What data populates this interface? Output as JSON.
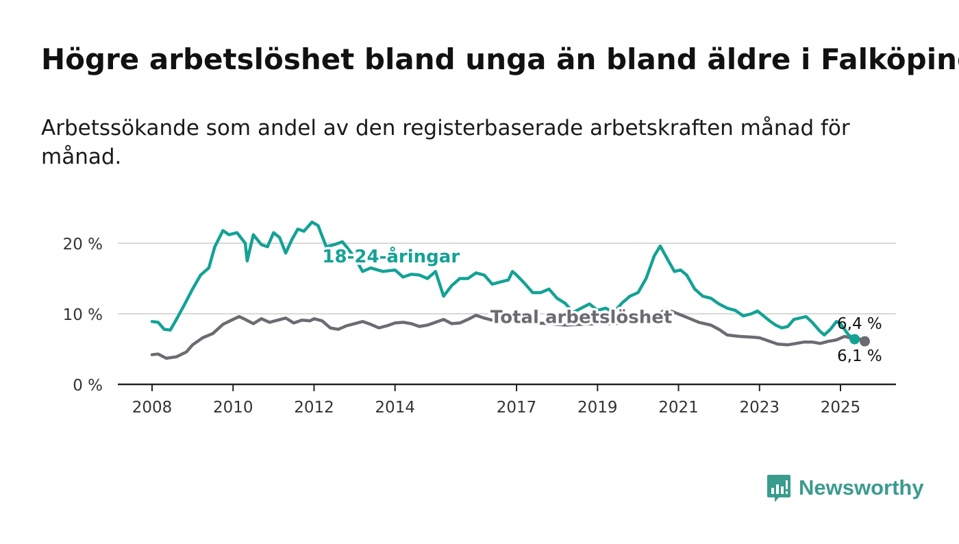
{
  "title": "Högre arbetslöshet bland unga än bland äldre i Falköping",
  "subtitle": "Arbetssökande som andel av den registerbaserade arbetskraften månad för månad.",
  "brand": "Newsworthy",
  "colors": {
    "youth": "#14a295",
    "total": "#6d6b72",
    "grid": "#d9d9d9",
    "axis": "#222222",
    "brand": "#3a9b8f"
  },
  "chart_data": {
    "type": "line",
    "ylim": [
      0,
      25
    ],
    "xlim": [
      2008,
      2026.8
    ],
    "yticks": [
      {
        "value": 0,
        "label": "0 %"
      },
      {
        "value": 10,
        "label": "10 %"
      },
      {
        "value": 20,
        "label": "20 %"
      }
    ],
    "xticks": [
      {
        "value": 2008,
        "label": "2008"
      },
      {
        "value": 2010,
        "label": "2010"
      },
      {
        "value": 2012,
        "label": "2012"
      },
      {
        "value": 2014,
        "label": "2014"
      },
      {
        "value": 2017,
        "label": "2017"
      },
      {
        "value": 2019,
        "label": "2019"
      },
      {
        "value": 2021,
        "label": "2021"
      },
      {
        "value": 2023,
        "label": "2023"
      },
      {
        "value": 2025,
        "label": "2025"
      }
    ],
    "grid": true,
    "series": [
      {
        "name": "18-24-åringar",
        "color": "#14a295",
        "end_label": "6,4 %",
        "points": [
          [
            2008.0,
            8.9
          ],
          [
            2008.15,
            8.8
          ],
          [
            2008.3,
            7.8
          ],
          [
            2008.45,
            7.7
          ],
          [
            2008.6,
            9.2
          ],
          [
            2008.8,
            11.3
          ],
          [
            2009.0,
            13.5
          ],
          [
            2009.2,
            15.5
          ],
          [
            2009.4,
            16.5
          ],
          [
            2009.55,
            19.5
          ],
          [
            2009.75,
            21.8
          ],
          [
            2009.9,
            21.2
          ],
          [
            2010.1,
            21.5
          ],
          [
            2010.3,
            20.0
          ],
          [
            2010.35,
            17.5
          ],
          [
            2010.5,
            21.2
          ],
          [
            2010.7,
            19.8
          ],
          [
            2010.85,
            19.5
          ],
          [
            2011.0,
            21.5
          ],
          [
            2011.15,
            20.8
          ],
          [
            2011.3,
            18.6
          ],
          [
            2011.45,
            20.5
          ],
          [
            2011.6,
            22.0
          ],
          [
            2011.75,
            21.7
          ],
          [
            2011.95,
            23.0
          ],
          [
            2012.1,
            22.5
          ],
          [
            2012.3,
            19.5
          ],
          [
            2012.5,
            19.8
          ],
          [
            2012.7,
            20.2
          ],
          [
            2012.8,
            19.5
          ],
          [
            2013.0,
            18.0
          ],
          [
            2013.2,
            16.0
          ],
          [
            2013.4,
            16.5
          ],
          [
            2013.7,
            16.0
          ],
          [
            2014.0,
            16.2
          ],
          [
            2014.2,
            15.2
          ],
          [
            2014.4,
            15.6
          ],
          [
            2014.6,
            15.5
          ],
          [
            2014.8,
            15.0
          ],
          [
            2015.0,
            16.0
          ],
          [
            2015.2,
            12.5
          ],
          [
            2015.4,
            14.0
          ],
          [
            2015.6,
            15.0
          ],
          [
            2015.8,
            15.0
          ],
          [
            2016.0,
            15.8
          ],
          [
            2016.2,
            15.5
          ],
          [
            2016.4,
            14.2
          ],
          [
            2016.6,
            14.5
          ],
          [
            2016.8,
            14.8
          ],
          [
            2016.9,
            16.0
          ],
          [
            2017.0,
            15.5
          ],
          [
            2017.2,
            14.3
          ],
          [
            2017.4,
            13.0
          ],
          [
            2017.6,
            13.0
          ],
          [
            2017.8,
            13.5
          ],
          [
            2018.0,
            12.2
          ],
          [
            2018.2,
            11.5
          ],
          [
            2018.4,
            10.2
          ],
          [
            2018.6,
            10.8
          ],
          [
            2018.8,
            11.4
          ],
          [
            2019.0,
            10.5
          ],
          [
            2019.2,
            10.8
          ],
          [
            2019.4,
            10.2
          ],
          [
            2019.6,
            11.5
          ],
          [
            2019.8,
            12.5
          ],
          [
            2020.0,
            13.0
          ],
          [
            2020.2,
            15.0
          ],
          [
            2020.4,
            18.2
          ],
          [
            2020.55,
            19.6
          ],
          [
            2020.75,
            17.5
          ],
          [
            2020.9,
            16.0
          ],
          [
            2021.05,
            16.2
          ],
          [
            2021.2,
            15.5
          ],
          [
            2021.4,
            13.5
          ],
          [
            2021.6,
            12.5
          ],
          [
            2021.8,
            12.2
          ],
          [
            2022.0,
            11.4
          ],
          [
            2022.2,
            10.8
          ],
          [
            2022.4,
            10.5
          ],
          [
            2022.6,
            9.7
          ],
          [
            2022.8,
            10.0
          ],
          [
            2022.95,
            10.4
          ],
          [
            2023.1,
            9.7
          ],
          [
            2023.25,
            9.0
          ],
          [
            2023.4,
            8.4
          ],
          [
            2023.55,
            8.0
          ],
          [
            2023.7,
            8.2
          ],
          [
            2023.85,
            9.2
          ],
          [
            2024.0,
            9.4
          ],
          [
            2024.15,
            9.6
          ],
          [
            2024.3,
            8.8
          ],
          [
            2024.5,
            7.5
          ],
          [
            2024.6,
            7.0
          ],
          [
            2024.75,
            7.8
          ],
          [
            2024.9,
            8.9
          ],
          [
            2025.0,
            8.6
          ],
          [
            2025.2,
            7.0
          ],
          [
            2025.35,
            6.4
          ]
        ]
      },
      {
        "name": "Total arbetslöshet",
        "color": "#6d6b72",
        "end_label": "6,1 %",
        "points": [
          [
            2008.0,
            4.2
          ],
          [
            2008.15,
            4.3
          ],
          [
            2008.35,
            3.7
          ],
          [
            2008.6,
            3.9
          ],
          [
            2008.85,
            4.6
          ],
          [
            2009.0,
            5.6
          ],
          [
            2009.25,
            6.6
          ],
          [
            2009.5,
            7.2
          ],
          [
            2009.75,
            8.5
          ],
          [
            2010.0,
            9.2
          ],
          [
            2010.15,
            9.6
          ],
          [
            2010.3,
            9.2
          ],
          [
            2010.5,
            8.6
          ],
          [
            2010.7,
            9.3
          ],
          [
            2010.9,
            8.8
          ],
          [
            2011.1,
            9.1
          ],
          [
            2011.3,
            9.4
          ],
          [
            2011.5,
            8.7
          ],
          [
            2011.7,
            9.1
          ],
          [
            2011.9,
            9.0
          ],
          [
            2012.0,
            9.3
          ],
          [
            2012.2,
            9.0
          ],
          [
            2012.4,
            8.0
          ],
          [
            2012.6,
            7.8
          ],
          [
            2012.8,
            8.3
          ],
          [
            2013.0,
            8.6
          ],
          [
            2013.2,
            8.9
          ],
          [
            2013.4,
            8.5
          ],
          [
            2013.6,
            8.0
          ],
          [
            2013.8,
            8.3
          ],
          [
            2014.0,
            8.7
          ],
          [
            2014.2,
            8.8
          ],
          [
            2014.4,
            8.6
          ],
          [
            2014.6,
            8.2
          ],
          [
            2014.8,
            8.4
          ],
          [
            2015.0,
            8.8
          ],
          [
            2015.2,
            9.2
          ],
          [
            2015.4,
            8.6
          ],
          [
            2015.6,
            8.7
          ],
          [
            2015.8,
            9.2
          ],
          [
            2016.0,
            9.8
          ],
          [
            2016.2,
            9.4
          ],
          [
            2016.4,
            9.1
          ],
          [
            2016.6,
            9.2
          ],
          [
            2016.8,
            9.4
          ],
          [
            2016.95,
            10.0
          ],
          [
            2017.1,
            9.8
          ],
          [
            2017.3,
            9.2
          ],
          [
            2017.5,
            8.7
          ],
          [
            2017.8,
            8.6
          ],
          [
            2018.2,
            8.4
          ],
          [
            2018.6,
            8.5
          ],
          [
            2019.0,
            8.6
          ],
          [
            2019.4,
            8.6
          ],
          [
            2019.8,
            8.8
          ],
          [
            2020.2,
            9.4
          ],
          [
            2020.5,
            10.0
          ],
          [
            2020.7,
            10.6
          ],
          [
            2020.9,
            10.2
          ],
          [
            2021.2,
            9.5
          ],
          [
            2021.5,
            8.8
          ],
          [
            2021.8,
            8.4
          ],
          [
            2022.0,
            7.8
          ],
          [
            2022.2,
            7.0
          ],
          [
            2022.5,
            6.8
          ],
          [
            2022.8,
            6.7
          ],
          [
            2023.0,
            6.6
          ],
          [
            2023.2,
            6.2
          ],
          [
            2023.45,
            5.7
          ],
          [
            2023.7,
            5.6
          ],
          [
            2023.9,
            5.8
          ],
          [
            2024.1,
            6.0
          ],
          [
            2024.3,
            6.0
          ],
          [
            2024.5,
            5.8
          ],
          [
            2024.7,
            6.1
          ],
          [
            2024.9,
            6.3
          ],
          [
            2025.1,
            6.8
          ],
          [
            2025.3,
            6.5
          ],
          [
            2025.5,
            6.4
          ],
          [
            2025.6,
            6.1
          ]
        ]
      }
    ],
    "annotations": [
      {
        "text": "18-24-åringar",
        "series": "18-24-åringar",
        "x": 2013.9,
        "y": 17.3
      },
      {
        "text": "Total arbetslöshet",
        "series": "Total arbetslöshet",
        "x": 2018.6,
        "y": 8.7
      }
    ]
  }
}
